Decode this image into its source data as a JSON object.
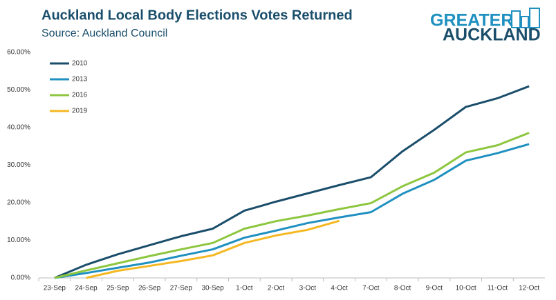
{
  "chart_data": {
    "type": "line",
    "title": "Auckland Local Body Elections Votes Returned",
    "subtitle": "Source: Auckland Council",
    "logo": [
      "GREATER",
      "AUCKLAND"
    ],
    "categories": [
      "23-Sep",
      "24-Sep",
      "25-Sep",
      "26-Sep",
      "27-Sep",
      "30-Sep",
      "1-Oct",
      "2-Oct",
      "3-Oct",
      "4-Oct",
      "7-Oct",
      "8-Oct",
      "9-Oct",
      "10-Oct",
      "11-Oct",
      "12-Oct"
    ],
    "series": [
      {
        "name": "2010",
        "color": "#1a4e6b",
        "values": [
          0,
          3.5,
          6.3,
          8.7,
          11.1,
          13.1,
          17.9,
          20.3,
          22.5,
          24.7,
          26.8,
          33.7,
          39.4,
          45.5,
          47.8,
          51.0
        ]
      },
      {
        "name": "2013",
        "color": "#1f90c0",
        "values": [
          0,
          1.3,
          2.7,
          4.1,
          5.9,
          7.6,
          10.7,
          12.6,
          14.6,
          16.1,
          17.5,
          22.4,
          26.1,
          31.2,
          33.2,
          35.6
        ]
      },
      {
        "name": "2016",
        "color": "#8dc63f",
        "values": [
          0,
          2.0,
          3.9,
          5.8,
          7.6,
          9.3,
          13.1,
          15.1,
          16.6,
          18.3,
          19.9,
          24.4,
          28.0,
          33.4,
          35.3,
          38.6
        ]
      },
      {
        "name": "2019",
        "color": "#f5b821",
        "values": [
          null,
          0,
          1.9,
          3.2,
          4.5,
          6.0,
          9.3,
          11.3,
          12.8,
          15.2,
          null,
          null,
          null,
          null,
          null,
          null
        ]
      }
    ],
    "ylim": [
      0,
      60
    ],
    "yticks": [
      {
        "value": 0,
        "label": "0.00%"
      },
      {
        "value": 10,
        "label": "10.00%"
      },
      {
        "value": 20,
        "label": "20.00%"
      },
      {
        "value": 30,
        "label": "30.00%"
      },
      {
        "value": 40,
        "label": "40.00%"
      },
      {
        "value": 50,
        "label": "50.00%"
      },
      {
        "value": 60,
        "label": "60.00%"
      }
    ],
    "legend": "top-left"
  }
}
